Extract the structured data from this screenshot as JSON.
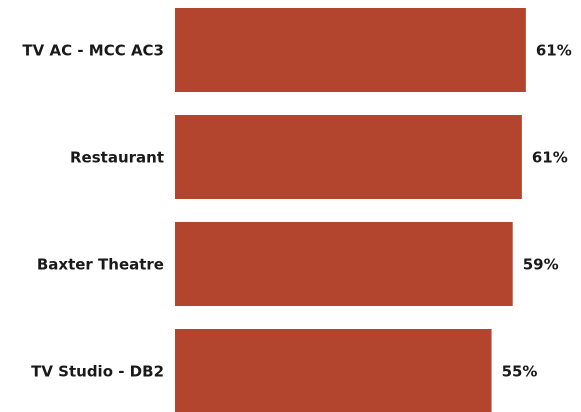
{
  "chart_data": {
    "type": "barh",
    "categories": [
      "TV AC - MCC AC3",
      "Restaurant",
      "Baxter Theatre",
      "TV Studio - DB2"
    ],
    "values": [
      61.4,
      60.7,
      59.1,
      55.4
    ],
    "value_labels": [
      "61%",
      "61%",
      "59%",
      "55%"
    ],
    "color": "#b3442e",
    "xlim": [
      0,
      70
    ]
  }
}
